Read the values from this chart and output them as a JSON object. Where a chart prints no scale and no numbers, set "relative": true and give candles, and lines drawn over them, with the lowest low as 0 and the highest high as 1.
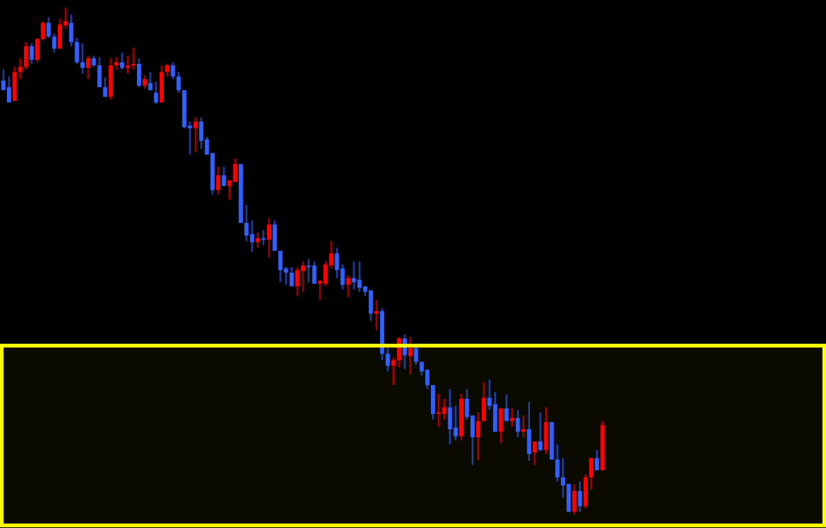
{
  "chart_data": {
    "type": "candlestick",
    "relative": true,
    "categories": [
      null,
      null,
      null,
      null,
      null,
      null,
      null,
      null,
      null,
      null,
      null,
      null,
      null,
      null,
      null,
      null,
      null,
      null,
      null,
      null,
      null,
      null,
      null,
      null,
      null,
      null,
      null,
      null,
      null,
      null,
      null,
      null,
      null,
      null,
      null,
      null,
      null,
      null,
      null,
      null,
      null,
      null,
      null,
      null,
      null,
      null,
      null,
      null,
      null,
      null,
      null,
      null,
      null,
      null,
      null,
      null,
      null,
      null,
      null,
      null,
      null,
      null,
      null,
      null,
      null,
      null,
      null,
      null,
      null,
      null,
      null,
      null,
      null,
      null,
      null,
      null,
      null,
      null,
      null,
      null,
      null,
      null,
      null,
      null,
      null,
      null,
      null,
      null,
      null,
      null,
      null,
      null,
      null,
      null,
      null,
      null,
      null,
      null,
      null,
      null,
      null,
      null,
      null,
      null,
      null,
      null,
      null
    ],
    "ohlc": [
      [
        0.856,
        0.878,
        0.837,
        0.837
      ],
      [
        0.843,
        0.864,
        0.813,
        0.813
      ],
      [
        0.816,
        0.883,
        0.816,
        0.873
      ],
      [
        0.873,
        0.9,
        0.859,
        0.883
      ],
      [
        0.883,
        0.932,
        0.878,
        0.924
      ],
      [
        0.924,
        0.93,
        0.889,
        0.897
      ],
      [
        0.897,
        0.94,
        0.892,
        0.938
      ],
      [
        0.938,
        0.973,
        0.935,
        0.97
      ],
      [
        0.97,
        0.981,
        0.94,
        0.943
      ],
      [
        0.943,
        0.949,
        0.911,
        0.919
      ],
      [
        0.919,
        0.978,
        0.919,
        0.967
      ],
      [
        0.965,
        1.0,
        0.959,
        0.973
      ],
      [
        0.97,
        0.986,
        0.924,
        0.932
      ],
      [
        0.932,
        0.94,
        0.889,
        0.892
      ],
      [
        0.892,
        0.93,
        0.87,
        0.881
      ],
      [
        0.881,
        0.905,
        0.859,
        0.9
      ],
      [
        0.9,
        0.905,
        0.883,
        0.886
      ],
      [
        0.886,
        0.902,
        0.843,
        0.843
      ],
      [
        0.843,
        0.862,
        0.824,
        0.824
      ],
      [
        0.824,
        0.9,
        0.818,
        0.886
      ],
      [
        0.886,
        0.902,
        0.878,
        0.892
      ],
      [
        0.892,
        0.911,
        0.878,
        0.881
      ],
      [
        0.881,
        0.905,
        0.87,
        0.886
      ],
      [
        0.886,
        0.921,
        0.878,
        0.889
      ],
      [
        0.889,
        0.9,
        0.843,
        0.846
      ],
      [
        0.846,
        0.867,
        0.84,
        0.859
      ],
      [
        0.851,
        0.873,
        0.837,
        0.837
      ],
      [
        0.832,
        0.854,
        0.81,
        0.813
      ],
      [
        0.813,
        0.886,
        0.813,
        0.873
      ],
      [
        0.873,
        0.889,
        0.864,
        0.886
      ],
      [
        0.886,
        0.892,
        0.859,
        0.864
      ],
      [
        0.864,
        0.873,
        0.832,
        0.837
      ],
      [
        0.837,
        0.837,
        0.762,
        0.764
      ],
      [
        0.767,
        0.775,
        0.71,
        0.762
      ],
      [
        0.762,
        0.783,
        0.715,
        0.775
      ],
      [
        0.775,
        0.783,
        0.721,
        0.737
      ],
      [
        0.74,
        0.745,
        0.71,
        0.71
      ],
      [
        0.713,
        0.713,
        0.631,
        0.64
      ],
      [
        0.64,
        0.686,
        0.631,
        0.669
      ],
      [
        0.669,
        0.686,
        0.648,
        0.648
      ],
      [
        0.648,
        0.659,
        0.621,
        0.659
      ],
      [
        0.656,
        0.702,
        0.656,
        0.691
      ],
      [
        0.691,
        0.691,
        0.575,
        0.575
      ],
      [
        0.575,
        0.61,
        0.539,
        0.55
      ],
      [
        0.553,
        0.58,
        0.518,
        0.537
      ],
      [
        0.537,
        0.556,
        0.526,
        0.545
      ],
      [
        0.545,
        0.561,
        0.531,
        0.542
      ],
      [
        0.542,
        0.585,
        0.507,
        0.572
      ],
      [
        0.572,
        0.58,
        0.52,
        0.52
      ],
      [
        0.52,
        0.52,
        0.458,
        0.482
      ],
      [
        0.485,
        0.488,
        0.453,
        0.477
      ],
      [
        0.477,
        0.488,
        0.45,
        0.45
      ],
      [
        0.45,
        0.488,
        0.431,
        0.482
      ],
      [
        0.48,
        0.499,
        0.439,
        0.491
      ],
      [
        0.491,
        0.504,
        0.458,
        0.488
      ],
      [
        0.491,
        0.499,
        0.455,
        0.455
      ],
      [
        0.455,
        0.461,
        0.423,
        0.461
      ],
      [
        0.455,
        0.499,
        0.45,
        0.493
      ],
      [
        0.491,
        0.539,
        0.485,
        0.515
      ],
      [
        0.515,
        0.526,
        0.466,
        0.482
      ],
      [
        0.485,
        0.493,
        0.444,
        0.453
      ],
      [
        0.453,
        0.472,
        0.428,
        0.466
      ],
      [
        0.466,
        0.499,
        0.444,
        0.458
      ],
      [
        0.463,
        0.499,
        0.439,
        0.447
      ],
      [
        0.45,
        0.45,
        0.431,
        0.439
      ],
      [
        0.442,
        0.442,
        0.382,
        0.396
      ],
      [
        0.396,
        0.423,
        0.363,
        0.401
      ],
      [
        0.401,
        0.407,
        0.304,
        0.317
      ],
      [
        0.317,
        0.328,
        0.282,
        0.293
      ],
      [
        0.293,
        0.309,
        0.255,
        0.304
      ],
      [
        0.304,
        0.35,
        0.29,
        0.347
      ],
      [
        0.347,
        0.355,
        0.287,
        0.314
      ],
      [
        0.312,
        0.35,
        0.276,
        0.328
      ],
      [
        0.328,
        0.336,
        0.295,
        0.301
      ],
      [
        0.301,
        0.301,
        0.274,
        0.282
      ],
      [
        0.285,
        0.287,
        0.247,
        0.255
      ],
      [
        0.255,
        0.255,
        0.187,
        0.198
      ],
      [
        0.198,
        0.238,
        0.173,
        0.201
      ],
      [
        0.198,
        0.228,
        0.187,
        0.211
      ],
      [
        0.211,
        0.247,
        0.138,
        0.168
      ],
      [
        0.171,
        0.214,
        0.146,
        0.154
      ],
      [
        0.154,
        0.238,
        0.146,
        0.228
      ],
      [
        0.228,
        0.247,
        0.187,
        0.192
      ],
      [
        0.195,
        0.195,
        0.098,
        0.152
      ],
      [
        0.152,
        0.201,
        0.106,
        0.184
      ],
      [
        0.184,
        0.26,
        0.184,
        0.23
      ],
      [
        0.23,
        0.266,
        0.206,
        0.214
      ],
      [
        0.217,
        0.241,
        0.163,
        0.163
      ],
      [
        0.163,
        0.209,
        0.141,
        0.209
      ],
      [
        0.209,
        0.236,
        0.184,
        0.184
      ],
      [
        0.184,
        0.209,
        0.173,
        0.19
      ],
      [
        0.19,
        0.206,
        0.152,
        0.163
      ],
      [
        0.163,
        0.195,
        0.152,
        0.168
      ],
      [
        0.168,
        0.222,
        0.106,
        0.119
      ],
      [
        0.122,
        0.144,
        0.098,
        0.144
      ],
      [
        0.144,
        0.201,
        0.125,
        0.127
      ],
      [
        0.127,
        0.211,
        0.119,
        0.182
      ],
      [
        0.182,
        0.182,
        0.108,
        0.108
      ],
      [
        0.108,
        0.138,
        0.065,
        0.073
      ],
      [
        0.073,
        0.111,
        0.033,
        0.057
      ],
      [
        0.06,
        0.06,
        0.005,
        0.005
      ],
      [
        0.005,
        0.06,
        0,
        0.046
      ],
      [
        0.046,
        0.065,
        0.005,
        0.016
      ],
      [
        0.016,
        0.079,
        0.011,
        0.073
      ],
      [
        0.073,
        0.111,
        0.049,
        0.111
      ],
      [
        0.111,
        0.127,
        0.087,
        0.087
      ],
      [
        0.087,
        0.184,
        0.087,
        0.176
      ]
    ],
    "colors": [
      "#3060ff",
      "#3060ff",
      "#ff0000",
      "#ff0000",
      "#ff0000",
      "#3060ff",
      "#ff0000",
      "#ff0000",
      "#3060ff",
      "#3060ff",
      "#ff0000",
      "#ff0000",
      "#3060ff",
      "#3060ff",
      "#3060ff",
      "#ff0000",
      "#3060ff",
      "#3060ff",
      "#3060ff",
      "#ff0000",
      "#ff0000",
      "#3060ff",
      "#ff0000",
      "#ff0000",
      "#3060ff",
      "#ff0000",
      "#3060ff",
      "#3060ff",
      "#ff0000",
      "#ff0000",
      "#3060ff",
      "#3060ff",
      "#3060ff",
      "#3060ff",
      "#ff0000",
      "#3060ff",
      "#3060ff",
      "#3060ff",
      "#ff0000",
      "#3060ff",
      "#ff0000",
      "#ff0000",
      "#3060ff",
      "#3060ff",
      "#3060ff",
      "#ff0000",
      "#3060ff",
      "#ff0000",
      "#3060ff",
      "#3060ff",
      "#3060ff",
      "#3060ff",
      "#ff0000",
      "#ff0000",
      "#3060ff",
      "#3060ff",
      "#ff0000",
      "#ff0000",
      "#ff0000",
      "#3060ff",
      "#3060ff",
      "#ff0000",
      "#3060ff",
      "#3060ff",
      "#3060ff",
      "#3060ff",
      "#ff0000",
      "#3060ff",
      "#3060ff",
      "#ff0000",
      "#ff0000",
      "#3060ff",
      "#ff0000",
      "#3060ff",
      "#3060ff",
      "#3060ff",
      "#3060ff",
      "#ff0000",
      "#ff0000",
      "#3060ff",
      "#3060ff",
      "#ff0000",
      "#3060ff",
      "#3060ff",
      "#ff0000",
      "#ff0000",
      "#3060ff",
      "#3060ff",
      "#ff0000",
      "#3060ff",
      "#ff0000",
      "#3060ff",
      "#ff0000",
      "#3060ff",
      "#ff0000",
      "#3060ff",
      "#ff0000",
      "#3060ff",
      "#3060ff",
      "#3060ff",
      "#3060ff",
      "#ff0000",
      "#3060ff",
      "#ff0000",
      "#ff0000",
      "#3060ff",
      "#ff0000"
    ],
    "bands": [
      {
        "axis": "y",
        "from": -0.022,
        "to": 0.333,
        "color": "#ffff00"
      }
    ]
  }
}
